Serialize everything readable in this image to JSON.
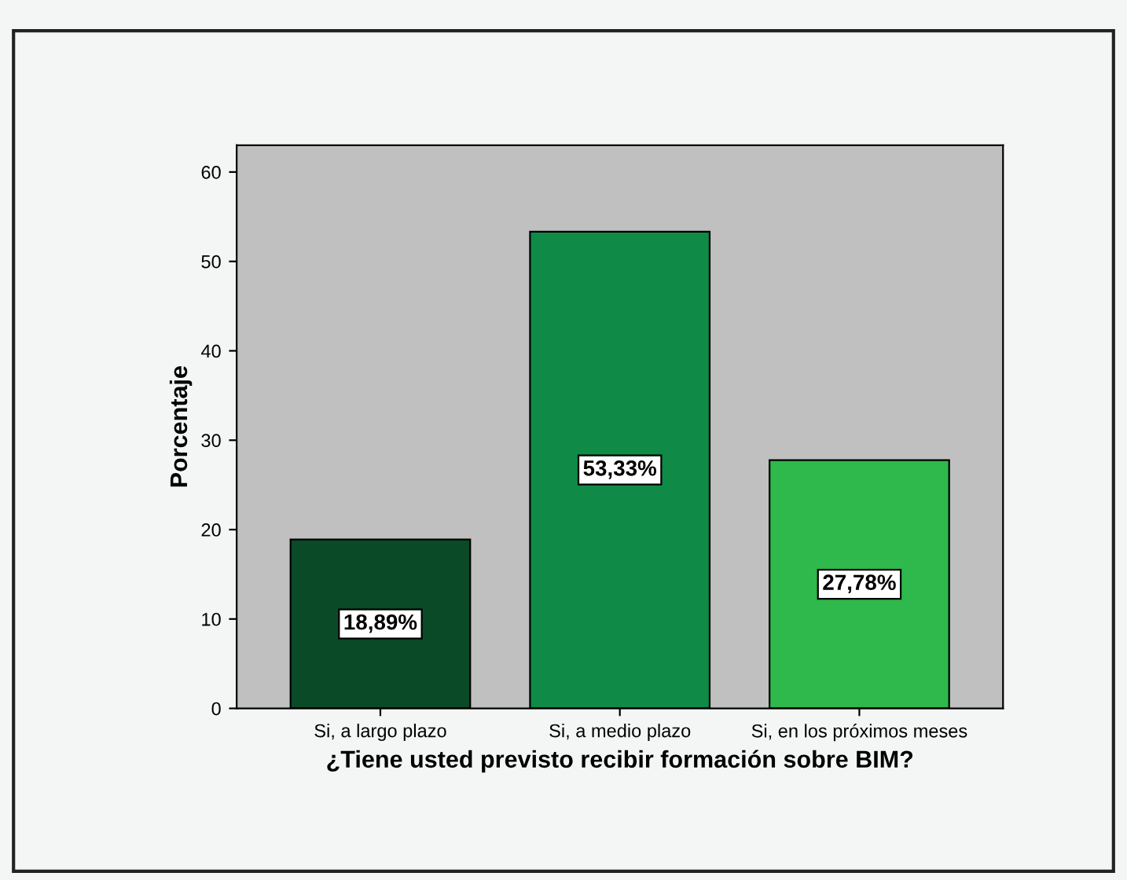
{
  "chart_data": {
    "type": "bar",
    "xlabel": "¿Tiene usted previsto recibir formación sobre BIM?",
    "ylabel": "Porcentaje",
    "categories": [
      "Si, a largo plazo",
      "Si, a medio plazo",
      "Si, en los próximos meses"
    ],
    "values": [
      18.89,
      53.33,
      27.78
    ],
    "colors": [
      "#0b4a27",
      "#0f8a47",
      "#2fb84b"
    ],
    "value_labels": [
      "18,89%",
      "53,33%",
      "27,78%"
    ],
    "ylim": [
      0,
      63
    ],
    "yticks": [
      0,
      10,
      20,
      30,
      40,
      50,
      60
    ],
    "grid": false,
    "legend": false
  }
}
